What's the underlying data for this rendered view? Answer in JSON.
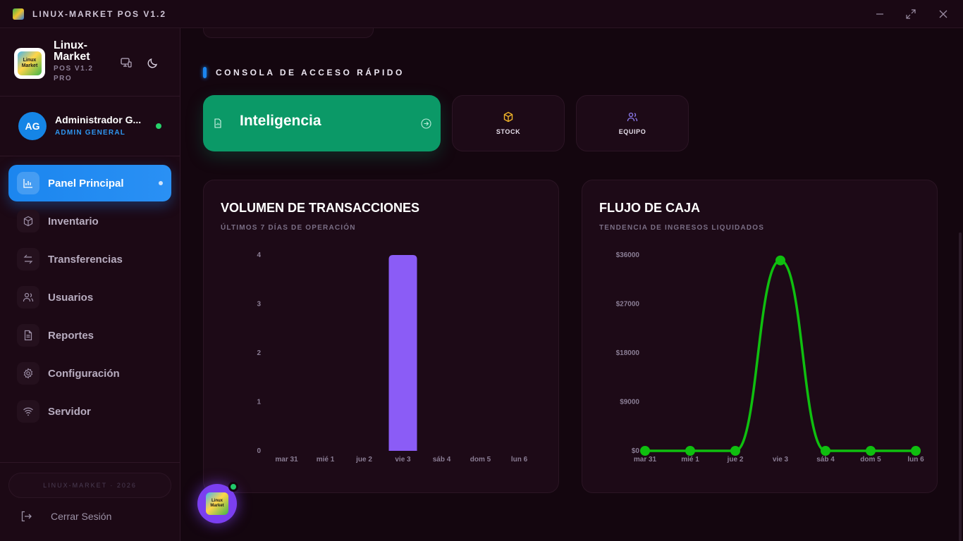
{
  "window": {
    "title": "LINUX-MARKET POS V1.2",
    "logo_icon": "linux-market-logo"
  },
  "sidebar": {
    "brand_name": "Linux-Market",
    "brand_sub": "POS V1.2 PRO",
    "logo_text": "Linux Market",
    "user": {
      "initials": "AG",
      "name": "Administrador G...",
      "role": "ADMIN GENERAL",
      "status_color": "#27d26b"
    },
    "nav": [
      {
        "label": "Panel Principal",
        "icon": "bar-chart-icon",
        "active": true
      },
      {
        "label": "Inventario",
        "icon": "box-icon"
      },
      {
        "label": "Transferencias",
        "icon": "transfer-arrows-icon"
      },
      {
        "label": "Usuarios",
        "icon": "users-icon"
      },
      {
        "label": "Reportes",
        "icon": "document-icon"
      },
      {
        "label": "Configuración",
        "icon": "gear-icon"
      },
      {
        "label": "Servidor",
        "icon": "wifi-icon"
      }
    ],
    "footer": "LINUX-MARKET · 2026",
    "logout_label": "Cerrar Sesión"
  },
  "main": {
    "section_title": "CONSOLA DE ACCESO RÁPIDO",
    "quick_access": {
      "primary_label": "Inteligencia",
      "stock_label": "STOCK",
      "team_label": "EQUIPO"
    },
    "tx_panel": {
      "title": "VOLUMEN DE TRANSACCIONES",
      "subtitle": "ÚLTIMOS 7 DÍAS DE OPERACIÓN"
    },
    "cash_panel": {
      "title": "FLUJO DE CAJA",
      "subtitle": "TENDENCIA DE INGRESOS LIQUIDADOS"
    },
    "fab_logo_text": "Linux Market"
  },
  "colors": {
    "accent": "#1b86ef",
    "green": "#0b9967",
    "bar": "#8b5cf6",
    "line": "#0fbf0f",
    "background": "#14060f"
  },
  "chart_data": [
    {
      "type": "bar",
      "title": "VOLUMEN DE TRANSACCIONES",
      "subtitle": "ÚLTIMOS 7 DÍAS DE OPERACIÓN",
      "categories": [
        "mar 31",
        "mié 1",
        "jue 2",
        "vie 3",
        "sáb 4",
        "dom 5",
        "lun 6"
      ],
      "values": [
        0,
        0,
        0,
        4,
        0,
        0,
        0
      ],
      "yticks": [
        "0",
        "1",
        "2",
        "3",
        "4"
      ],
      "ylim": [
        0,
        4
      ],
      "grid": false
    },
    {
      "type": "line",
      "title": "FLUJO DE CAJA",
      "subtitle": "TENDENCIA DE INGRESOS LIQUIDADOS",
      "categories": [
        "mar 31",
        "mié 1",
        "jue 2",
        "vie 3",
        "sáb 4",
        "dom 5",
        "lun 6"
      ],
      "values": [
        0,
        0,
        0,
        35000,
        0,
        0,
        0
      ],
      "yticks": [
        "$0",
        "$9000",
        "$18000",
        "$27000",
        "$36000"
      ],
      "ylim": [
        0,
        36000
      ],
      "grid": false
    }
  ]
}
